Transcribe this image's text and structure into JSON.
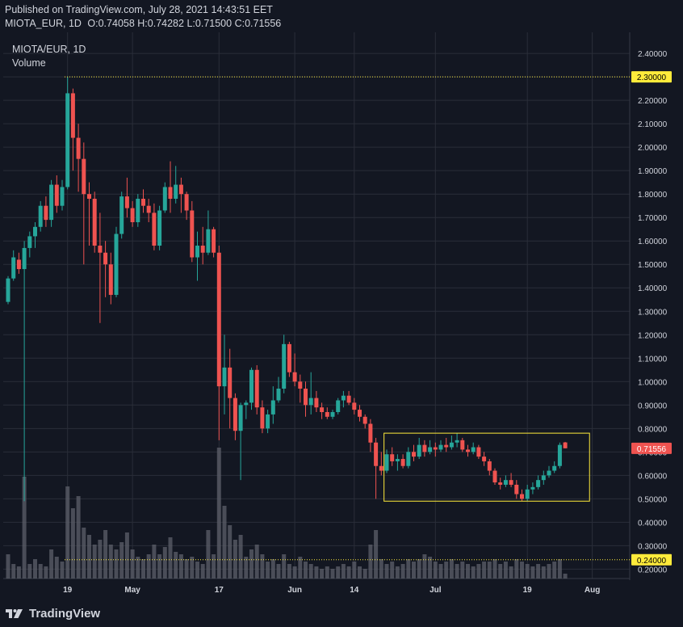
{
  "header": {
    "published": "Published on TradingView.com, July 28, 2021 14:43:51 EET",
    "symbol": "MIOTA_EUR, 1D",
    "o_label": "O:",
    "o_value": "0.74058",
    "h_label": "H:",
    "h_value": "0.74282",
    "l_label": "L:",
    "l_value": "0.71500",
    "c_label": "C:",
    "c_value": "0.71556"
  },
  "legend": {
    "title": "MIOTA/EUR, 1D",
    "volume": "Volume"
  },
  "footer": {
    "brand": "TradingView"
  },
  "colors": {
    "background": "#131722",
    "grid": "#2a2e39",
    "up": "#26a69a",
    "down": "#ef5350",
    "volume": "#5d606b",
    "highlight": "#ffeb3b",
    "text": "#d1d4dc"
  },
  "chart_data": {
    "type": "candlestick",
    "ylim": [
      0.16,
      2.49
    ],
    "y_ticks": [
      "2.40000",
      "2.30000",
      "2.20000",
      "2.10000",
      "2.00000",
      "1.90000",
      "1.80000",
      "1.70000",
      "1.60000",
      "1.50000",
      "1.40000",
      "1.30000",
      "1.20000",
      "1.10000",
      "1.00000",
      "0.90000",
      "0.80000",
      "0.70000",
      "0.60000",
      "0.50000",
      "0.40000",
      "0.30000",
      "0.20000"
    ],
    "x_ticks": [
      {
        "label": "19",
        "day": 11
      },
      {
        "label": "May",
        "day": 23
      },
      {
        "label": "17",
        "day": 39
      },
      {
        "label": "Jun",
        "day": 53
      },
      {
        "label": "14",
        "day": 64
      },
      {
        "label": "Jul",
        "day": 79
      },
      {
        "label": "19",
        "day": 96
      },
      {
        "label": "Aug",
        "day": 108
      }
    ],
    "price_markers": [
      {
        "label": "2.30000",
        "value": 2.3
      },
      {
        "label": "0.24000",
        "value": 0.24
      },
      {
        "label": "0.71556",
        "value": 0.71556
      }
    ],
    "highlight_box": {
      "x_start": 69.5,
      "x_end": 107.5,
      "y_low": 0.49,
      "y_high": 0.78
    },
    "candles": [
      [
        0,
        1.34,
        1.45,
        1.33,
        1.44
      ],
      [
        1,
        1.44,
        1.56,
        1.43,
        1.53
      ],
      [
        2,
        1.52,
        1.55,
        1.46,
        1.48
      ],
      [
        3,
        1.48,
        1.6,
        0.49,
        1.57
      ],
      [
        4,
        1.57,
        1.64,
        1.53,
        1.62
      ],
      [
        5,
        1.62,
        1.68,
        1.57,
        1.66
      ],
      [
        6,
        1.66,
        1.77,
        1.64,
        1.75
      ],
      [
        7,
        1.75,
        1.79,
        1.66,
        1.69
      ],
      [
        8,
        1.69,
        1.86,
        1.66,
        1.84
      ],
      [
        9,
        1.84,
        1.88,
        1.72,
        1.75
      ],
      [
        10,
        1.75,
        1.86,
        1.73,
        1.83
      ],
      [
        11,
        1.83,
        2.3,
        1.82,
        2.23
      ],
      [
        12,
        2.23,
        2.25,
        1.9,
        2.04
      ],
      [
        13,
        2.04,
        2.1,
        1.81,
        1.95
      ],
      [
        14,
        1.95,
        2.02,
        1.5,
        1.8
      ],
      [
        15,
        1.8,
        1.85,
        1.58,
        1.78
      ],
      [
        16,
        1.78,
        1.81,
        1.55,
        1.58
      ],
      [
        17,
        1.58,
        1.72,
        1.25,
        1.55
      ],
      [
        18,
        1.55,
        1.6,
        1.36,
        1.5
      ],
      [
        19,
        1.5,
        1.55,
        1.33,
        1.37
      ],
      [
        20,
        1.37,
        1.66,
        1.36,
        1.63
      ],
      [
        21,
        1.63,
        1.81,
        1.61,
        1.79
      ],
      [
        22,
        1.79,
        1.87,
        1.7,
        1.74
      ],
      [
        23,
        1.74,
        1.77,
        1.66,
        1.68
      ],
      [
        24,
        1.68,
        1.8,
        1.66,
        1.78
      ],
      [
        25,
        1.78,
        1.82,
        1.72,
        1.75
      ],
      [
        26,
        1.75,
        1.78,
        1.68,
        1.72
      ],
      [
        27,
        1.72,
        1.76,
        1.56,
        1.58
      ],
      [
        28,
        1.58,
        1.75,
        1.56,
        1.73
      ],
      [
        29,
        1.73,
        1.85,
        1.72,
        1.83
      ],
      [
        30,
        1.83,
        1.94,
        1.72,
        1.78
      ],
      [
        31,
        1.78,
        1.92,
        1.76,
        1.84
      ],
      [
        32,
        1.84,
        1.87,
        1.72,
        1.8
      ],
      [
        33,
        1.8,
        1.81,
        1.69,
        1.73
      ],
      [
        34,
        1.73,
        1.77,
        1.51,
        1.53
      ],
      [
        35,
        1.53,
        1.64,
        1.43,
        1.58
      ],
      [
        36,
        1.58,
        1.66,
        1.5,
        1.55
      ],
      [
        37,
        1.55,
        1.73,
        1.54,
        1.65
      ],
      [
        38,
        1.65,
        1.66,
        1.53,
        1.55
      ],
      [
        39,
        1.55,
        1.58,
        0.75,
        0.98
      ],
      [
        40,
        0.98,
        1.2,
        0.86,
        1.06
      ],
      [
        41,
        1.06,
        1.14,
        0.8,
        0.93
      ],
      [
        42,
        0.93,
        0.95,
        0.75,
        0.79
      ],
      [
        43,
        0.79,
        0.91,
        0.58,
        0.9
      ],
      [
        44,
        0.9,
        0.92,
        0.84,
        0.91
      ],
      [
        45,
        0.91,
        1.06,
        0.88,
        1.05
      ],
      [
        46,
        1.05,
        1.07,
        0.86,
        0.89
      ],
      [
        47,
        0.89,
        0.92,
        0.78,
        0.8
      ],
      [
        48,
        0.8,
        0.88,
        0.78,
        0.86
      ],
      [
        49,
        0.86,
        0.98,
        0.82,
        0.92
      ],
      [
        50,
        0.92,
        1.02,
        0.91,
        0.97
      ],
      [
        51,
        0.97,
        1.2,
        0.95,
        1.16
      ],
      [
        52,
        1.16,
        1.17,
        1.02,
        1.04
      ],
      [
        53,
        1.04,
        1.12,
        0.98,
        1.0
      ],
      [
        54,
        1.0,
        1.03,
        0.91,
        0.97
      ],
      [
        55,
        0.97,
        1.0,
        0.85,
        0.9
      ],
      [
        56,
        0.9,
        1.04,
        0.86,
        0.93
      ],
      [
        57,
        0.93,
        0.96,
        0.87,
        0.89
      ],
      [
        58,
        0.89,
        0.91,
        0.84,
        0.87
      ],
      [
        59,
        0.87,
        0.89,
        0.84,
        0.85
      ],
      [
        60,
        0.85,
        0.88,
        0.84,
        0.87
      ],
      [
        61,
        0.87,
        0.93,
        0.86,
        0.92
      ],
      [
        62,
        0.92,
        0.96,
        0.89,
        0.94
      ],
      [
        63,
        0.94,
        0.96,
        0.9,
        0.91
      ],
      [
        64,
        0.91,
        0.93,
        0.86,
        0.88
      ],
      [
        65,
        0.88,
        0.9,
        0.83,
        0.85
      ],
      [
        66,
        0.85,
        0.86,
        0.8,
        0.82
      ],
      [
        67,
        0.82,
        0.84,
        0.7,
        0.74
      ],
      [
        68,
        0.74,
        0.76,
        0.5,
        0.64
      ],
      [
        69,
        0.64,
        0.7,
        0.6,
        0.62
      ],
      [
        70,
        0.62,
        0.71,
        0.61,
        0.69
      ],
      [
        71,
        0.69,
        0.72,
        0.64,
        0.66
      ],
      [
        72,
        0.66,
        0.69,
        0.62,
        0.67
      ],
      [
        73,
        0.67,
        0.69,
        0.63,
        0.64
      ],
      [
        74,
        0.64,
        0.72,
        0.63,
        0.7
      ],
      [
        75,
        0.7,
        0.73,
        0.66,
        0.68
      ],
      [
        76,
        0.68,
        0.76,
        0.67,
        0.73
      ],
      [
        77,
        0.73,
        0.75,
        0.68,
        0.7
      ],
      [
        78,
        0.7,
        0.75,
        0.69,
        0.72
      ],
      [
        79,
        0.72,
        0.74,
        0.68,
        0.71
      ],
      [
        80,
        0.71,
        0.75,
        0.7,
        0.73
      ],
      [
        81,
        0.73,
        0.76,
        0.7,
        0.72
      ],
      [
        82,
        0.72,
        0.77,
        0.71,
        0.74
      ],
      [
        83,
        0.74,
        0.78,
        0.72,
        0.75
      ],
      [
        84,
        0.75,
        0.76,
        0.7,
        0.71
      ],
      [
        85,
        0.71,
        0.73,
        0.68,
        0.7
      ],
      [
        86,
        0.7,
        0.74,
        0.69,
        0.72
      ],
      [
        87,
        0.72,
        0.73,
        0.67,
        0.68
      ],
      [
        88,
        0.68,
        0.7,
        0.64,
        0.66
      ],
      [
        89,
        0.66,
        0.67,
        0.6,
        0.62
      ],
      [
        90,
        0.62,
        0.63,
        0.56,
        0.57
      ],
      [
        91,
        0.57,
        0.59,
        0.54,
        0.56
      ],
      [
        92,
        0.56,
        0.6,
        0.55,
        0.58
      ],
      [
        93,
        0.58,
        0.61,
        0.55,
        0.56
      ],
      [
        94,
        0.56,
        0.58,
        0.5,
        0.52
      ],
      [
        95,
        0.52,
        0.54,
        0.49,
        0.5
      ],
      [
        96,
        0.5,
        0.56,
        0.49,
        0.54
      ],
      [
        97,
        0.54,
        0.57,
        0.52,
        0.55
      ],
      [
        98,
        0.55,
        0.6,
        0.54,
        0.58
      ],
      [
        99,
        0.58,
        0.62,
        0.56,
        0.6
      ],
      [
        100,
        0.6,
        0.64,
        0.59,
        0.62
      ],
      [
        101,
        0.62,
        0.66,
        0.61,
        0.64
      ],
      [
        102,
        0.64,
        0.74,
        0.63,
        0.73
      ],
      [
        103,
        0.74058,
        0.74282,
        0.715,
        0.71556
      ]
    ],
    "volumes": [
      [
        0,
        0.1
      ],
      [
        1,
        0.06
      ],
      [
        2,
        0.05
      ],
      [
        3,
        0.42
      ],
      [
        4,
        0.06
      ],
      [
        5,
        0.08
      ],
      [
        6,
        0.06
      ],
      [
        7,
        0.05
      ],
      [
        8,
        0.12
      ],
      [
        9,
        0.09
      ],
      [
        10,
        0.07
      ],
      [
        11,
        0.38
      ],
      [
        12,
        0.29
      ],
      [
        13,
        0.34
      ],
      [
        14,
        0.21
      ],
      [
        15,
        0.18
      ],
      [
        16,
        0.14
      ],
      [
        17,
        0.16
      ],
      [
        18,
        0.2
      ],
      [
        19,
        0.14
      ],
      [
        20,
        0.12
      ],
      [
        21,
        0.15
      ],
      [
        22,
        0.19
      ],
      [
        23,
        0.12
      ],
      [
        24,
        0.09
      ],
      [
        25,
        0.08
      ],
      [
        26,
        0.1
      ],
      [
        27,
        0.14
      ],
      [
        28,
        0.1
      ],
      [
        29,
        0.13
      ],
      [
        30,
        0.17
      ],
      [
        31,
        0.11
      ],
      [
        32,
        0.1
      ],
      [
        33,
        0.08
      ],
      [
        34,
        0.09
      ],
      [
        35,
        0.07
      ],
      [
        36,
        0.06
      ],
      [
        37,
        0.2
      ],
      [
        38,
        0.1
      ],
      [
        39,
        0.54
      ],
      [
        40,
        0.3
      ],
      [
        41,
        0.22
      ],
      [
        42,
        0.16
      ],
      [
        43,
        0.18
      ],
      [
        44,
        0.09
      ],
      [
        45,
        0.12
      ],
      [
        46,
        0.14
      ],
      [
        47,
        0.1
      ],
      [
        48,
        0.07
      ],
      [
        49,
        0.08
      ],
      [
        50,
        0.06
      ],
      [
        51,
        0.1
      ],
      [
        52,
        0.06
      ],
      [
        53,
        0.05
      ],
      [
        54,
        0.09
      ],
      [
        55,
        0.07
      ],
      [
        56,
        0.06
      ],
      [
        57,
        0.05
      ],
      [
        58,
        0.04
      ],
      [
        59,
        0.05
      ],
      [
        60,
        0.04
      ],
      [
        61,
        0.05
      ],
      [
        62,
        0.06
      ],
      [
        63,
        0.05
      ],
      [
        64,
        0.07
      ],
      [
        65,
        0.05
      ],
      [
        66,
        0.04
      ],
      [
        67,
        0.14
      ],
      [
        68,
        0.2
      ],
      [
        69,
        0.08
      ],
      [
        70,
        0.06
      ],
      [
        71,
        0.07
      ],
      [
        72,
        0.05
      ],
      [
        73,
        0.06
      ],
      [
        74,
        0.08
      ],
      [
        75,
        0.07
      ],
      [
        76,
        0.08
      ],
      [
        77,
        0.1
      ],
      [
        78,
        0.09
      ],
      [
        79,
        0.07
      ],
      [
        80,
        0.06
      ],
      [
        81,
        0.07
      ],
      [
        82,
        0.08
      ],
      [
        83,
        0.06
      ],
      [
        84,
        0.07
      ],
      [
        85,
        0.06
      ],
      [
        86,
        0.05
      ],
      [
        87,
        0.06
      ],
      [
        88,
        0.07
      ],
      [
        89,
        0.07
      ],
      [
        90,
        0.08
      ],
      [
        91,
        0.06
      ],
      [
        92,
        0.07
      ],
      [
        93,
        0.05
      ],
      [
        94,
        0.08
      ],
      [
        95,
        0.07
      ],
      [
        96,
        0.06
      ],
      [
        97,
        0.05
      ],
      [
        98,
        0.06
      ],
      [
        99,
        0.05
      ],
      [
        100,
        0.06
      ],
      [
        101,
        0.07
      ],
      [
        102,
        0.08
      ],
      [
        103,
        0.02
      ]
    ]
  }
}
